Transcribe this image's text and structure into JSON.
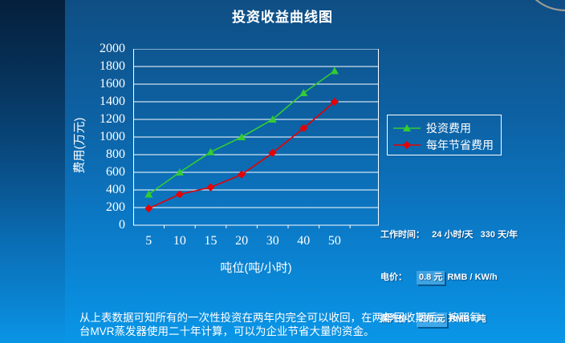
{
  "slide": {
    "title": "投资收益曲线图",
    "paragraph": {
      "line1": "从上表数据可知所有的一次性投资在两年内完全可以收回，在两年回收期后，按照每",
      "line2": "台MVR蒸发器使用二十年计算，可以为企业节省大量的资金。"
    }
  },
  "chart_data": {
    "type": "line",
    "title": "投资收益曲线图",
    "categories": [
      5,
      10,
      15,
      20,
      30,
      40,
      50
    ],
    "xlabel": "吨位(吨/小时)",
    "ylabel": "费用(万元)",
    "ylim": [
      0,
      2000
    ],
    "ytick_step": 200,
    "grid": "horizontal-only",
    "legend_position": "right",
    "series": [
      {
        "name": "投资费用",
        "marker": "triangle",
        "color": "#33cc33",
        "values": [
          350,
          600,
          830,
          1000,
          1200,
          1500,
          1750
        ]
      },
      {
        "name": "每年节省费用",
        "marker": "diamond",
        "color": "#e60000",
        "values": [
          190,
          350,
          430,
          575,
          820,
          1100,
          1400
        ]
      }
    ]
  },
  "info": {
    "work_time": {
      "label": "工作时间：",
      "value": "   24 小时/天   330 天/年"
    },
    "electricity": {
      "label": "电价：",
      "value": "0.8 元",
      "unit": "RMB / KW/h"
    },
    "steam": {
      "label": "蒸汽价：",
      "value": "230 元",
      "unit": "RMB / 吨"
    }
  },
  "colors": {
    "background_top": "#0f4e84",
    "background_bottom": "#0a96e8",
    "axis": "#ffffff",
    "text": "#ffffff",
    "series_investment": "#33cc33",
    "series_savings": "#e60000"
  }
}
